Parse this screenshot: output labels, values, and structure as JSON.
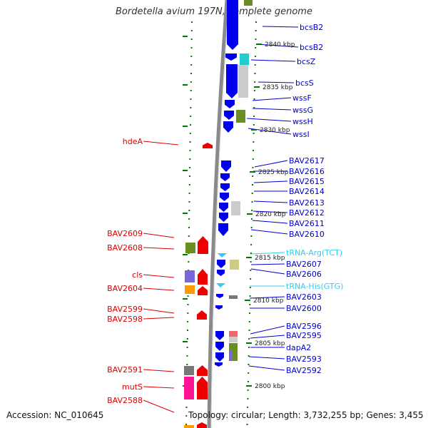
{
  "title": "Bordetella avium 197N, complete genome",
  "footer": {
    "accession": "Accession: NC_010645",
    "stats": "Topology: circular; Length: 3,732,255 bp; Genes: 3,455"
  },
  "colors": {
    "reverse_label": "#dd0000",
    "forward_label": "#0000cc",
    "trna_label": "#33ccee",
    "backbone": "#8a8a8a",
    "tick": "#007700",
    "cds_reverse": "#ee0000",
    "cds_forward": "#0000ee",
    "trna": "#33ccee",
    "cog_olive": "#6b8e23",
    "cog_purple": "#7766dd",
    "cog_orange": "#ff9900",
    "cog_gray": "#777777",
    "cog_magenta": "#ff1493",
    "cog_cyan": "#22cccc",
    "cog_lightgray": "#cccccc",
    "cog_khaki": "#cccc88",
    "cog_salmon": "#ee6666"
  },
  "position_ticks": [
    {
      "label": "2840 kbp"
    },
    {
      "label": "2835 kbp"
    },
    {
      "label": "2830 kbp"
    },
    {
      "label": "2825 kbp"
    },
    {
      "label": "2820 kbp"
    },
    {
      "label": "2815 kbp"
    },
    {
      "label": "2810 kbp"
    },
    {
      "label": "2805 kbp"
    },
    {
      "label": "2800 kbp"
    }
  ],
  "reverse_genes": [
    {
      "label": "hdeA"
    },
    {
      "label": "BAV2609"
    },
    {
      "label": "BAV2608"
    },
    {
      "label": "cls"
    },
    {
      "label": "BAV2604"
    },
    {
      "label": "BAV2599"
    },
    {
      "label": "BAV2598"
    },
    {
      "label": "BAV2591"
    },
    {
      "label": "mutS"
    },
    {
      "label": "BAV2588"
    }
  ],
  "forward_genes": [
    {
      "label": "bcsB2",
      "kind": "cds"
    },
    {
      "label": "bcsB2",
      "kind": "cds"
    },
    {
      "label": "bcsZ",
      "kind": "cds"
    },
    {
      "label": "bcsS",
      "kind": "cds"
    },
    {
      "label": "wssF",
      "kind": "cds"
    },
    {
      "label": "wssG",
      "kind": "cds"
    },
    {
      "label": "wssH",
      "kind": "cds"
    },
    {
      "label": "wssI",
      "kind": "cds"
    },
    {
      "label": "BAV2617",
      "kind": "cds"
    },
    {
      "label": "BAV2616",
      "kind": "cds"
    },
    {
      "label": "BAV2615",
      "kind": "cds"
    },
    {
      "label": "BAV2614",
      "kind": "cds"
    },
    {
      "label": "BAV2613",
      "kind": "cds"
    },
    {
      "label": "BAV2612",
      "kind": "cds"
    },
    {
      "label": "BAV2611",
      "kind": "cds"
    },
    {
      "label": "BAV2610",
      "kind": "cds"
    },
    {
      "label": "tRNA-Arg(TCT)",
      "kind": "trna"
    },
    {
      "label": "BAV2607",
      "kind": "cds"
    },
    {
      "label": "BAV2606",
      "kind": "cds"
    },
    {
      "label": "tRNA-His(GTG)",
      "kind": "trna"
    },
    {
      "label": "BAV2603",
      "kind": "cds"
    },
    {
      "label": "BAV2600",
      "kind": "cds"
    },
    {
      "label": "BAV2596",
      "kind": "cds"
    },
    {
      "label": "BAV2595",
      "kind": "cds"
    },
    {
      "label": "dapA2",
      "kind": "cds"
    },
    {
      "label": "BAV2593",
      "kind": "cds"
    },
    {
      "label": "BAV2592",
      "kind": "cds"
    }
  ]
}
